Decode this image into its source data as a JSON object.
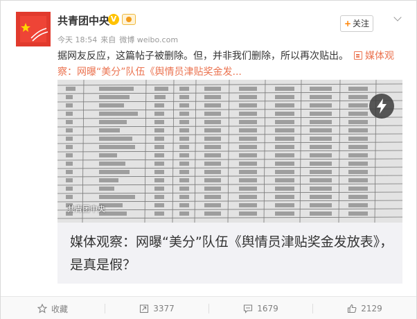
{
  "user": {
    "name": "共青团中央",
    "verified_symbol": "V"
  },
  "meta": {
    "time": "今天 18:54",
    "source_prefix": "来自",
    "source": "微博 weibo.com"
  },
  "follow_button": {
    "plus": "+",
    "label": "关注"
  },
  "post": {
    "text": "据网友反应，这篇帖子被删除。但，并非我们删除，所以再次贴出。",
    "link_text": "媒体观察：网曝“美分”队伍《舆情员津贴奖金发..."
  },
  "media_card": {
    "watermark": "共青团中央",
    "title": "媒体观察：网曝“美分”队伍《舆情员津贴奖金发放表》，是真是假？"
  },
  "footer": {
    "favorite": "收藏",
    "repost_count": "3377",
    "comment_count": "1679",
    "like_count": "2129"
  },
  "colors": {
    "accent_orange": "#eb7350",
    "follow_plus": "#ff8200",
    "verified": "#ffc200"
  },
  "icons": [
    "verified-icon",
    "badge-icon",
    "chevron-down-icon",
    "link-icon",
    "play-icon",
    "star-icon",
    "repost-icon",
    "comment-icon",
    "like-icon"
  ]
}
